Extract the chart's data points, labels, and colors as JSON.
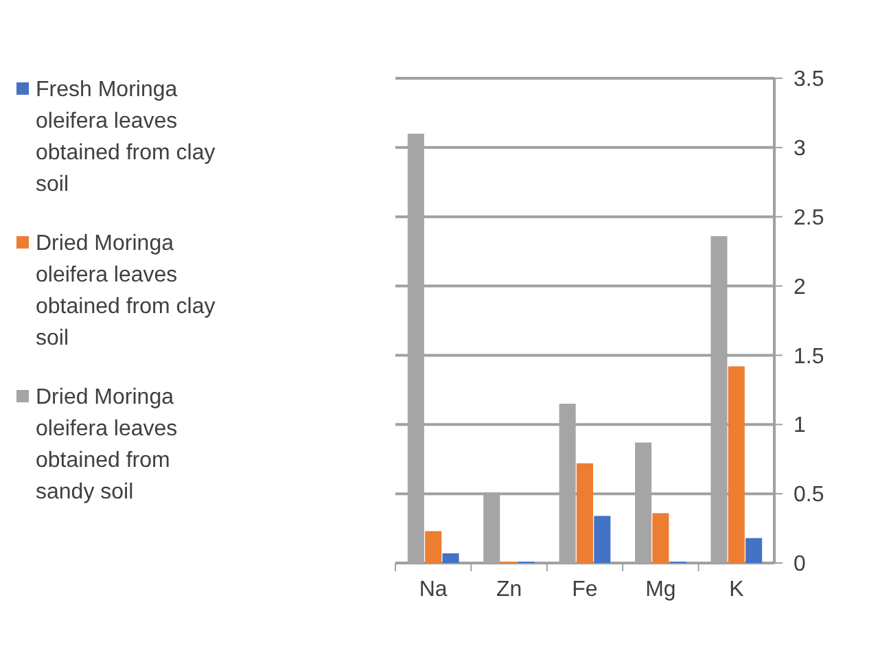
{
  "chart_data": {
    "type": "bar",
    "categories": [
      "Na",
      "Zn",
      "Fe",
      "Mg",
      "K"
    ],
    "series": [
      {
        "name": "Fresh Moringa oleifera leaves obtained from clay soil",
        "color": "#4472c4",
        "values": [
          0.07,
          0.01,
          0.34,
          0.01,
          0.18
        ]
      },
      {
        "name": "Dried Moringa oleifera leaves obtained from clay soil",
        "color": "#ed7d31",
        "values": [
          0.23,
          0.01,
          0.72,
          0.36,
          1.42
        ]
      },
      {
        "name": "Dried Moringa oleifera leaves obtained from sandy soil",
        "color": "#a5a5a5",
        "values": [
          3.1,
          0.51,
          1.15,
          0.87,
          2.36
        ]
      }
    ],
    "ylim": [
      0,
      3.5
    ],
    "yticks": [
      0,
      {
        "value": 0.5,
        "label": "0.5"
      },
      1,
      {
        "value": 1.5,
        "label": "1.5"
      },
      2,
      {
        "value": 2.5,
        "label": "2.5"
      },
      3,
      {
        "value": 3.5,
        "label": "3.5"
      }
    ],
    "grid": "y",
    "legend": "left"
  }
}
